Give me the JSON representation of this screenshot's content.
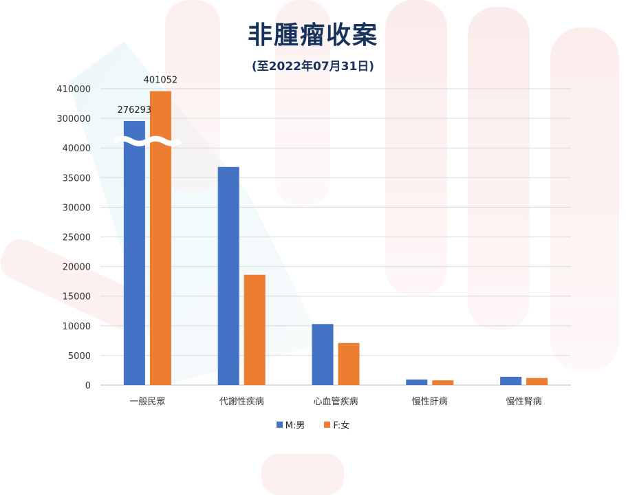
{
  "title": "非腫瘤收案",
  "subtitle": "(至2022年07月31日)",
  "chart_data": {
    "type": "bar",
    "title": "非腫瘤收案",
    "subtitle": "(至2022年07月31日)",
    "categories": [
      "一般民眾",
      "代謝性疾病",
      "心血管疾病",
      "慢性肝病",
      "慢性腎病"
    ],
    "series": [
      {
        "name": "M:男",
        "color": "#4472c4",
        "values": [
          276293,
          36800,
          10300,
          950,
          1400
        ]
      },
      {
        "name": "F:女",
        "color": "#ed7d31",
        "values": [
          401052,
          18600,
          7100,
          800,
          1200
        ]
      }
    ],
    "y_ticks": [
      "0",
      "5000",
      "10000",
      "15000",
      "20000",
      "25000",
      "30000",
      "35000",
      "40000",
      "300000",
      "410000"
    ],
    "y_axis_break": {
      "from": 40000,
      "to": 300000
    },
    "ylim": [
      0,
      410000
    ],
    "data_labels": [
      "276293",
      "401052"
    ],
    "grid": true,
    "legend_position": "bottom"
  }
}
